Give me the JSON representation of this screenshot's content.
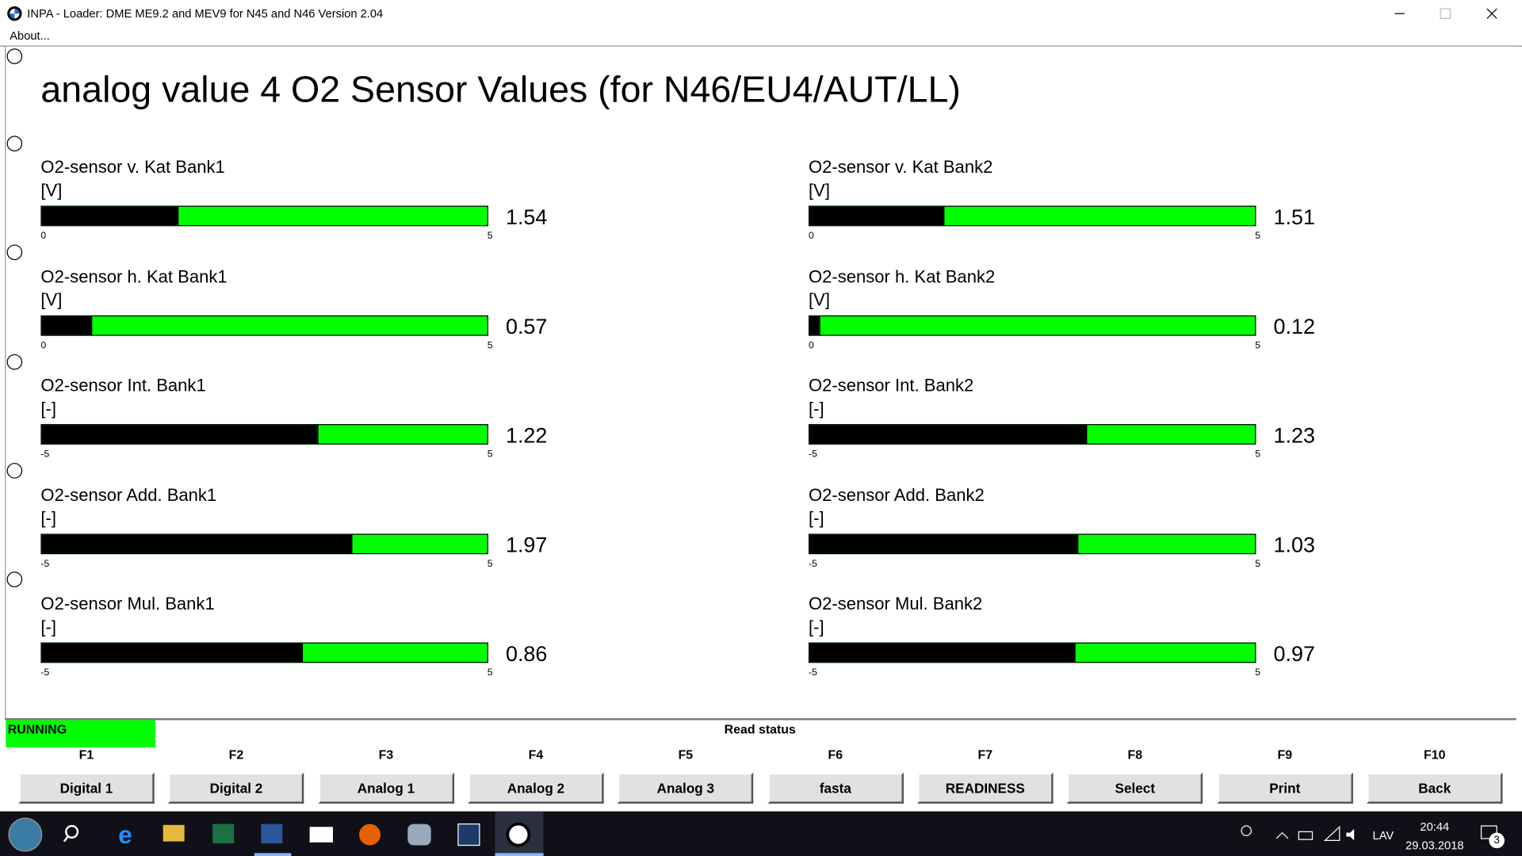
{
  "window": {
    "title": "INPA - Loader:  DME ME9.2 and MEV9 for N45 and N46 Version 2.04",
    "menu": [
      "About..."
    ]
  },
  "heading": "analog value 4 O2 Sensor Values (for N46/EU4/AUT/LL)",
  "gauges": [
    {
      "label": "O2-sensor v. Kat Bank1",
      "unit": "[V]",
      "min": 0,
      "max": 5,
      "value": 1.54
    },
    {
      "label": "O2-sensor v. Kat Bank2",
      "unit": "[V]",
      "min": 0,
      "max": 5,
      "value": 1.51
    },
    {
      "label": "O2-sensor h. Kat Bank1",
      "unit": "[V]",
      "min": 0,
      "max": 5,
      "value": 0.57
    },
    {
      "label": "O2-sensor h. Kat Bank2",
      "unit": "[V]",
      "min": 0,
      "max": 5,
      "value": 0.12
    },
    {
      "label": "O2-sensor Int. Bank1",
      "unit": "[-]",
      "min": -5,
      "max": 5,
      "value": 1.22
    },
    {
      "label": "O2-sensor Int. Bank2",
      "unit": "[-]",
      "min": -5,
      "max": 5,
      "value": 1.23
    },
    {
      "label": "O2-sensor Add. Bank1",
      "unit": "[-]",
      "min": -5,
      "max": 5,
      "value": 1.97
    },
    {
      "label": "O2-sensor Add. Bank2",
      "unit": "[-]",
      "min": -5,
      "max": 5,
      "value": 1.03
    },
    {
      "label": "O2-sensor Mul. Bank1",
      "unit": "[-]",
      "min": -5,
      "max": 5,
      "value": 0.86
    },
    {
      "label": "O2-sensor Mul. Bank2",
      "unit": "[-]",
      "min": -5,
      "max": 5,
      "value": 0.97
    }
  ],
  "status": {
    "state": "RUNNING",
    "message": "Read status"
  },
  "function_keys": [
    {
      "key": "F1",
      "label": "Digital 1"
    },
    {
      "key": "F2",
      "label": "Digital 2"
    },
    {
      "key": "F3",
      "label": "Analog 1"
    },
    {
      "key": "F4",
      "label": "Analog 2"
    },
    {
      "key": "F5",
      "label": "Analog 3"
    },
    {
      "key": "F6",
      "label": "fasta"
    },
    {
      "key": "F7",
      "label": "READINESS"
    },
    {
      "key": "F8",
      "label": "Select"
    },
    {
      "key": "F9",
      "label": "Print"
    },
    {
      "key": "F10",
      "label": "Back"
    }
  ],
  "taskbar": {
    "language": "LAV",
    "time": "20:44",
    "date": "29.03.2018",
    "notifications": 3
  }
}
